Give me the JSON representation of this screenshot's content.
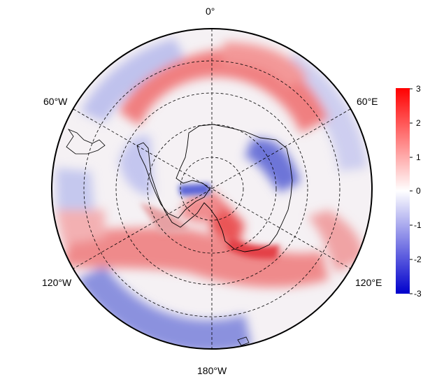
{
  "map": {
    "projection": "south-polar-stereographic",
    "longitude_labels": {
      "top": "0°",
      "upper_left": "60°W",
      "upper_right": "60°E",
      "lower_left": "120°W",
      "lower_right": "120°E",
      "bottom": "180°W"
    },
    "graticule": "dashed",
    "anomaly_pattern": "red ring mid-latitudes, blue outer ring, red sector Ross Sea, blue Weddell/Indian sector"
  },
  "colorbar": {
    "ticks": [
      "3",
      "2",
      "1",
      "0",
      "-1",
      "-2",
      "-3"
    ],
    "range": [
      -3,
      3
    ],
    "colors": {
      "low": "#0000cc",
      "mid": "#ffffff",
      "high": "#ff0000"
    }
  }
}
